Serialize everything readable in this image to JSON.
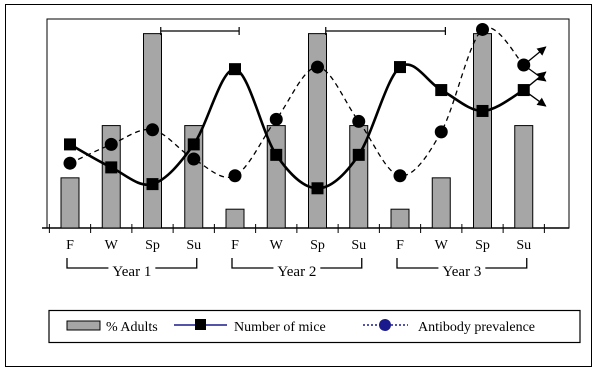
{
  "chart_data": {
    "type": "bar",
    "categories": [
      "F",
      "W",
      "Sp",
      "Su",
      "F",
      "W",
      "Sp",
      "Su",
      "F",
      "W",
      "Sp",
      "Su"
    ],
    "groups": [
      {
        "label": "Year 1",
        "start": 0,
        "end": 3
      },
      {
        "label": "Year 2",
        "start": 4,
        "end": 7
      },
      {
        "label": "Year 3",
        "start": 8,
        "end": 11
      }
    ],
    "series": [
      {
        "name": "% Adults",
        "type": "bar",
        "values": [
          24,
          49,
          93,
          49,
          9,
          49,
          93,
          49,
          9,
          24,
          93,
          49
        ]
      },
      {
        "name": "Number of mice",
        "type": "line",
        "marker": "square",
        "style": "solid",
        "values": [
          40,
          29,
          21,
          40,
          76,
          35,
          19,
          35,
          77,
          66,
          56,
          66
        ]
      },
      {
        "name": "Antibody prevalence",
        "type": "line",
        "marker": "circle",
        "style": "dashed",
        "values": [
          31,
          40,
          47,
          33,
          25,
          52,
          77,
          51,
          25,
          46,
          95,
          78
        ]
      }
    ],
    "ylim": [
      0,
      100
    ],
    "title": "",
    "xlabel": "",
    "ylabel": "",
    "grid": false,
    "legend_position": "bottom",
    "brackets": [
      {
        "from": 2.2,
        "to": 4.1
      },
      {
        "from": 6.2,
        "to": 9.1
      }
    ],
    "trend_arrows": true
  },
  "legend": {
    "items": [
      "% Adults",
      "Number of mice",
      "Antibody prevalence"
    ]
  },
  "colors": {
    "bar_fill": "#a6a6a6",
    "line": "#000000",
    "legend_line": "#1a1a8c"
  }
}
